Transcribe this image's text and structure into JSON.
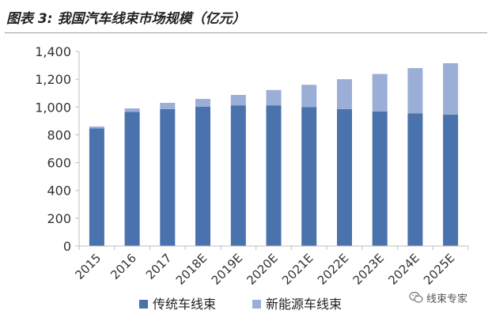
{
  "figure": {
    "label": "图表 3:",
    "title": "我国汽车线束市场规模（亿元）"
  },
  "watermark": {
    "text": "线束专家",
    "icon": "wechat-icon"
  },
  "colors": {
    "traditional": "#4a72ad",
    "new_energy": "#9aaed6",
    "axis": "#bfbfbf"
  },
  "chart_data": {
    "type": "bar",
    "stacked": true,
    "categories": [
      "2015",
      "2016",
      "2017",
      "2018E",
      "2019E",
      "2020E",
      "2021E",
      "2022E",
      "2023E",
      "2024E",
      "2025E"
    ],
    "series": [
      {
        "name": "传统车线束",
        "values": [
          845,
          965,
          985,
          1003,
          1012,
          1012,
          1000,
          985,
          968,
          955,
          945
        ]
      },
      {
        "name": "新能源车线束",
        "values": [
          15,
          25,
          45,
          55,
          75,
          110,
          160,
          215,
          270,
          325,
          370
        ]
      }
    ],
    "ylim": [
      0,
      1400
    ],
    "yticks": [
      0,
      200,
      400,
      600,
      800,
      1000,
      1200,
      1400
    ],
    "ytick_labels": [
      "0",
      "200",
      "400",
      "600",
      "800",
      "1,000",
      "1,200",
      "1,400"
    ],
    "grid": false,
    "legend_position": "bottom"
  }
}
